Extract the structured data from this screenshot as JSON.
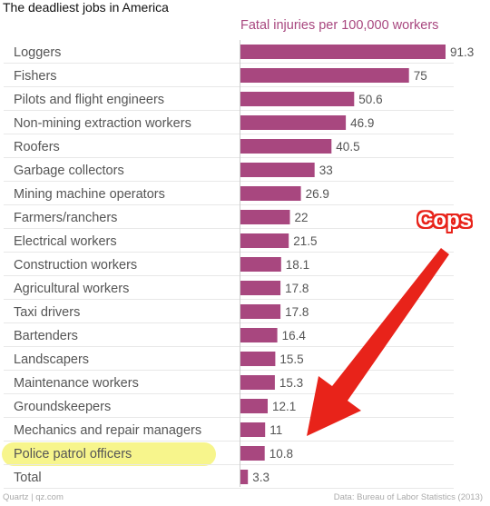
{
  "chart_data": {
    "type": "bar",
    "orientation": "horizontal",
    "title": "The deadliest jobs in America",
    "value_label": "Fatal injuries per 100,000 workers",
    "categories": [
      "Loggers",
      "Fishers",
      "Pilots and flight engineers",
      "Non-mining extraction workers",
      "Roofers",
      "Garbage collectors",
      "Mining machine operators",
      "Farmers/ranchers",
      "Electrical workers",
      "Construction workers",
      "Agricultural workers",
      "Taxi drivers",
      "Bartenders",
      "Landscapers",
      "Maintenance workers",
      "Groundskeepers",
      "Mechanics and repair managers",
      "Police patrol officers",
      "Total"
    ],
    "values": [
      91.3,
      75,
      50.6,
      46.9,
      40.5,
      33,
      26.9,
      22,
      21.5,
      18.1,
      17.8,
      17.8,
      16.4,
      15.5,
      15.3,
      12.1,
      11,
      10.8,
      3.3
    ],
    "xlim": [
      0,
      91.3
    ],
    "grid": false,
    "legend": "none",
    "highlighted_category": "Police patrol officers",
    "annotation": "Cops"
  },
  "footer": {
    "source_left": "Quartz | qz.com",
    "source_right": "Data: Bureau of Labor Statistics (2013)"
  },
  "colors": {
    "bar": "#a8477f",
    "value_axis_label": "#a8477f",
    "highlight": "#f7f58c",
    "arrow": "#e8231a",
    "row_divider": "#e8e8e8"
  }
}
